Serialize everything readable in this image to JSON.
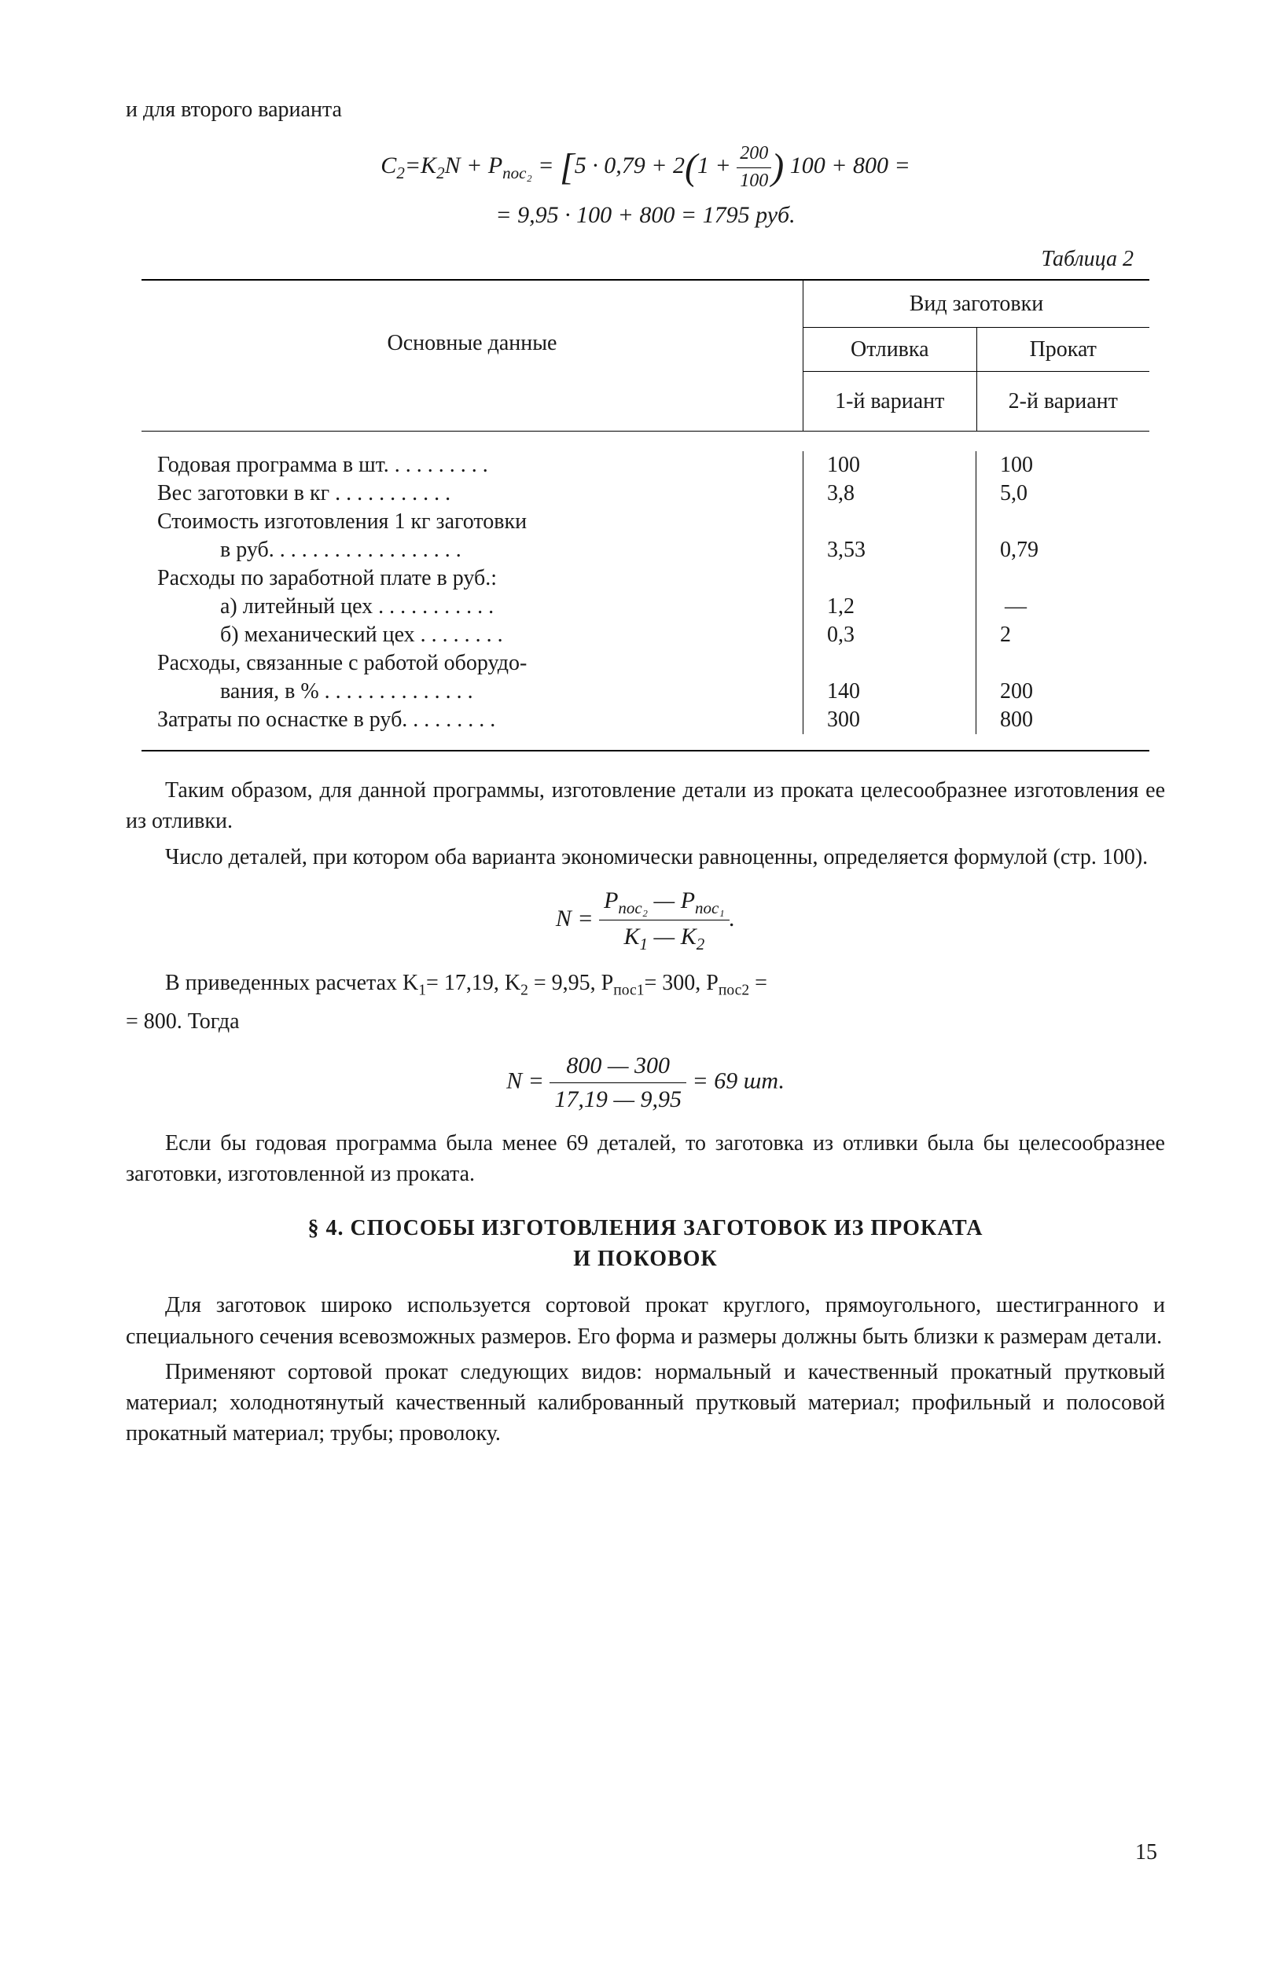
{
  "intro_line": "и для второго варианта",
  "formula_1_line1_prefix": "C",
  "formula_1_line1_sub1": "2",
  "formula_1_line1_eq": "=K",
  "formula_1_line1_sub2": "2",
  "formula_1_line1_mid": "N + P",
  "formula_1_line1_sub3": "пос₂",
  "formula_1_line1_after": " = ",
  "formula_1_line1_expr1": "5 · 0,79 + 2",
  "formula_1_line1_expr2": "1 + ",
  "formula_1_frac_num": "200",
  "formula_1_frac_den": "100",
  "formula_1_line1_expr3": " 100 + 800 =",
  "formula_1_line2": "= 9,95 · 100 + 800 = 1795 руб.",
  "table_label": "Таблица 2",
  "table": {
    "header_main": "Основные данные",
    "header_group": "Вид заготовки",
    "header_sub1": "Отливка",
    "header_sub2": "Прокат",
    "header_var1": "1-й вариант",
    "header_var2": "2-й вариант",
    "rows": [
      {
        "label": "Годовая программа в шт. . . . . . . . . .",
        "v1": "100",
        "v2": "100"
      },
      {
        "label": "Вес заготовки в кг    . . . . . . . . . . .",
        "v1": "3,8",
        "v2": "5,0"
      },
      {
        "label": "Стоимость изготовления 1 кг заготовки",
        "v1": "",
        "v2": ""
      },
      {
        "label": "в руб.  . . . . . . . . . . . . . . . . .",
        "v1": "3,53",
        "v2": "0,79",
        "indent": true
      },
      {
        "label": "Расходы по заработной плате в руб.:",
        "v1": "",
        "v2": ""
      },
      {
        "label": "а) литейный цех . . . . . . . . . . .",
        "v1": "1,2",
        "v2": "—",
        "indent": true
      },
      {
        "label": "б) механический цех . . . . . . . .",
        "v1": "0,3",
        "v2": "2",
        "indent": true
      },
      {
        "label": "Расходы, связанные с работой оборудо-",
        "v1": "",
        "v2": ""
      },
      {
        "label": "вания, в % . . . . . . . . . . . . . .",
        "v1": "140",
        "v2": "200",
        "indent": true
      },
      {
        "label": "Затраты по оснастке в руб. . . . . . . . .",
        "v1": "300",
        "v2": "800"
      }
    ]
  },
  "para1": "Таким образом, для данной программы, изготовление детали из проката целесообразнее изготовления ее из отливки.",
  "para2": "Число деталей, при котором оба варианта экономически равноценны, определяется формулой (стр. 100).",
  "formula_2_prefix": "N = ",
  "formula_2_num": "P",
  "formula_2_num_sub1": "пос₂",
  "formula_2_num_mid": " — P",
  "formula_2_num_sub2": "пос₁",
  "formula_2_den": "K",
  "formula_2_den_sub1": "1",
  "formula_2_den_mid": " — K",
  "formula_2_den_sub2": "2",
  "formula_2_suffix": ".",
  "para3_pre": "В приведенных расчетах K",
  "para3_s1": "1",
  "para3_m1": "= 17,19,  K",
  "para3_s2": "2",
  "para3_m2": " = 9,95, P",
  "para3_s3": "пос1",
  "para3_m3": "= 300, P",
  "para3_s4": "пос2",
  "para3_m4": " = ",
  "para3_line2": "= 800. Тогда",
  "formula_3_prefix": "N = ",
  "formula_3_num": "800 — 300",
  "formula_3_den": "17,19 — 9,95",
  "formula_3_suffix": " = 69 шт.",
  "para4": "Если бы годовая программа была менее 69 деталей, то заготовка из отливки была бы целесообразнее заготовки, изготовленной из проката.",
  "section_heading_line1": "§ 4. СПОСОБЫ ИЗГОТОВЛЕНИЯ ЗАГОТОВОК ИЗ ПРОКАТА",
  "section_heading_line2": "И ПОКОВОК",
  "para5": "Для заготовок широко используется сортовой прокат круглого, прямоугольного, шестигранного и специального сечения всевозможных размеров. Его форма и размеры должны быть близки к размерам детали.",
  "para6": "Применяют сортовой прокат следующих видов: нормальный и качественный прокатный прутковый материал; холоднотянутый качественный калиброванный прутковый материал; профильный и полосовой прокатный материал; трубы; проволоку.",
  "page_number": "15"
}
